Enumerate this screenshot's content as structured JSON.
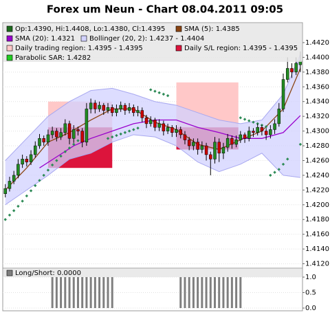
{
  "chart_data": [
    {
      "type": "candlestick",
      "title": "Forex um Neun - Chart 08.04.2011 09:05",
      "candle_label": "Op:1.4390, Hi:1.4408, Lo:1.4380, Cl:1.4395",
      "candle_color": "#1e6b1e",
      "up_color": "#228b22",
      "down_color": "#cc0000",
      "categories": [
        null,
        null,
        null,
        null,
        null,
        null,
        null,
        null,
        null,
        null,
        null,
        null,
        null,
        null,
        null,
        null,
        null,
        null,
        null,
        null,
        null,
        null,
        null,
        null,
        null,
        null,
        null,
        null,
        null,
        null,
        null,
        null,
        null,
        null,
        null,
        null,
        null,
        null,
        null,
        null,
        null,
        null,
        null,
        null,
        null,
        null,
        null,
        null,
        null,
        null,
        null,
        null,
        null,
        null,
        null,
        null,
        null,
        null,
        null,
        null,
        null,
        null,
        null,
        null,
        null,
        null,
        null,
        null,
        null,
        null
      ],
      "open": [
        1.4215,
        1.4222,
        1.4232,
        1.424,
        1.4255,
        1.4262,
        1.4258,
        1.4268,
        1.428,
        1.429,
        1.4285,
        1.4295,
        1.43,
        1.4292,
        1.4298,
        1.431,
        1.429,
        1.4302,
        1.43,
        1.4285,
        1.433,
        1.4338,
        1.433,
        1.4335,
        1.4328,
        1.4332,
        1.4325,
        1.433,
        1.4335,
        1.4328,
        1.4332,
        1.4325,
        1.4328,
        1.4318,
        1.431,
        1.4315,
        1.4305,
        1.431,
        1.43,
        1.4305,
        1.4298,
        1.4302,
        1.4295,
        1.4288,
        1.428,
        1.4285,
        1.4275,
        1.428,
        1.4268,
        1.4262,
        1.4285,
        1.427,
        1.4278,
        1.429,
        1.4282,
        1.4288,
        1.4295,
        1.429,
        1.43,
        1.4298,
        1.4305,
        1.43,
        1.4295,
        1.4302,
        1.431,
        1.433,
        1.437,
        1.4385,
        1.438,
        1.439
      ],
      "high": [
        1.4228,
        1.4238,
        1.4246,
        1.4262,
        1.4268,
        1.4266,
        1.4274,
        1.4286,
        1.4296,
        1.4294,
        1.4302,
        1.4306,
        1.4304,
        1.4304,
        1.4316,
        1.4314,
        1.4308,
        1.4306,
        1.4304,
        1.4338,
        1.4344,
        1.4342,
        1.434,
        1.4338,
        1.4338,
        1.4336,
        1.4336,
        1.434,
        1.4338,
        1.4338,
        1.4336,
        1.4334,
        1.4332,
        1.4322,
        1.432,
        1.4318,
        1.4316,
        1.4314,
        1.431,
        1.4308,
        1.4308,
        1.4306,
        1.43,
        1.4292,
        1.429,
        1.429,
        1.4286,
        1.4284,
        1.4272,
        1.4292,
        1.429,
        1.4284,
        1.4296,
        1.4294,
        1.4294,
        1.43,
        1.4298,
        1.4306,
        1.4304,
        1.431,
        1.4308,
        1.4304,
        1.4308,
        1.4316,
        1.4338,
        1.4378,
        1.44,
        1.4392,
        1.44,
        1.4408
      ],
      "low": [
        1.421,
        1.4218,
        1.4228,
        1.4236,
        1.425,
        1.4252,
        1.4254,
        1.4264,
        1.4276,
        1.428,
        1.428,
        1.429,
        1.4286,
        1.4288,
        1.4294,
        1.4282,
        1.4284,
        1.4294,
        1.4278,
        1.428,
        1.4324,
        1.4324,
        1.4326,
        1.4322,
        1.4324,
        1.432,
        1.432,
        1.4326,
        1.4322,
        1.4324,
        1.432,
        1.432,
        1.4312,
        1.4304,
        1.4306,
        1.43,
        1.43,
        1.4294,
        1.4296,
        1.4292,
        1.4292,
        1.429,
        1.4282,
        1.4274,
        1.4274,
        1.4268,
        1.427,
        1.426,
        1.424,
        1.4256,
        1.4258,
        1.4262,
        1.4272,
        1.4276,
        1.4278,
        1.4284,
        1.4284,
        1.4286,
        1.4292,
        1.4294,
        1.4294,
        1.4288,
        1.429,
        1.4296,
        1.4306,
        1.4326,
        1.4366,
        1.4372,
        1.4376,
        1.438
      ],
      "close": [
        1.4222,
        1.4232,
        1.424,
        1.4255,
        1.4262,
        1.4258,
        1.4268,
        1.428,
        1.429,
        1.4285,
        1.4295,
        1.43,
        1.4292,
        1.4298,
        1.431,
        1.429,
        1.4302,
        1.43,
        1.4285,
        1.433,
        1.4338,
        1.433,
        1.4335,
        1.4328,
        1.4332,
        1.4325,
        1.433,
        1.4335,
        1.4328,
        1.4332,
        1.4325,
        1.4328,
        1.4318,
        1.431,
        1.4315,
        1.4305,
        1.431,
        1.43,
        1.4305,
        1.4298,
        1.4302,
        1.4295,
        1.4288,
        1.428,
        1.4285,
        1.4275,
        1.428,
        1.4268,
        1.4262,
        1.4285,
        1.427,
        1.4278,
        1.429,
        1.4282,
        1.4288,
        1.4295,
        1.429,
        1.43,
        1.4298,
        1.4305,
        1.43,
        1.4295,
        1.4302,
        1.431,
        1.433,
        1.437,
        1.4385,
        1.438,
        1.4392,
        1.4395
      ],
      "series": [
        {
          "name": "SMA (5): 1.4385",
          "color": "#8b4513",
          "kind": "line",
          "x": [
            0,
            5,
            10,
            15,
            20,
            25,
            30,
            35,
            40,
            45,
            50,
            55,
            60,
            65,
            69
          ],
          "values": [
            1.422,
            1.425,
            1.4285,
            1.4298,
            1.4315,
            1.433,
            1.433,
            1.4312,
            1.4302,
            1.4282,
            1.4275,
            1.4288,
            1.43,
            1.433,
            1.4385
          ]
        },
        {
          "name": "SMA (20): 1.4321",
          "color": "#9900cc",
          "kind": "line",
          "x": [
            8,
            12,
            16,
            20,
            25,
            30,
            35,
            40,
            45,
            50,
            55,
            60,
            65,
            69
          ],
          "values": [
            1.425,
            1.4265,
            1.428,
            1.429,
            1.43,
            1.431,
            1.4315,
            1.4315,
            1.4305,
            1.4298,
            1.429,
            1.429,
            1.4298,
            1.4321
          ]
        },
        {
          "name": "Bollinger (20, 2): 1.4237 - 1.4404",
          "color": "#a8a8f0",
          "fill": "#d2d2ff",
          "kind": "band",
          "x": [
            0,
            5,
            10,
            15,
            20,
            25,
            30,
            35,
            40,
            45,
            50,
            55,
            60,
            65,
            69
          ],
          "upper": [
            1.426,
            1.429,
            1.432,
            1.434,
            1.4355,
            1.4358,
            1.435,
            1.434,
            1.4335,
            1.4325,
            1.4315,
            1.431,
            1.4315,
            1.435,
            1.4404
          ],
          "lower": [
            1.42,
            1.422,
            1.424,
            1.4262,
            1.427,
            1.4285,
            1.4295,
            1.4292,
            1.428,
            1.4258,
            1.4245,
            1.4255,
            1.427,
            1.424,
            1.4237
          ]
        },
        {
          "name": "Parabolic SAR: 1.4282",
          "color": "#2e8b57",
          "kind": "dots",
          "x": [
            0,
            1,
            2,
            3,
            4,
            5,
            6,
            7,
            8,
            9,
            10,
            11,
            12,
            13,
            14,
            15,
            16,
            17,
            24,
            25,
            26,
            27,
            28,
            29,
            30,
            31,
            34,
            35,
            36,
            37,
            38,
            55,
            56,
            57,
            58,
            59,
            60,
            61,
            62,
            63,
            64,
            65,
            66,
            69
          ],
          "values": [
            1.418,
            1.4186,
            1.4192,
            1.4198,
            1.4205,
            1.4212,
            1.4219,
            1.4226,
            1.4233,
            1.424,
            1.4247,
            1.4254,
            1.426,
            1.4266,
            1.4272,
            1.4277,
            1.4282,
            1.4287,
            1.429,
            1.4292,
            1.4294,
            1.4296,
            1.4298,
            1.43,
            1.4302,
            1.4304,
            1.4356,
            1.4354,
            1.4352,
            1.435,
            1.4348,
            1.4318,
            1.4316,
            1.4314,
            1.4312,
            1.431,
            1.4308,
            1.4306,
            1.424,
            1.4244,
            1.4248,
            1.4255,
            1.4262,
            1.4282
          ]
        }
      ],
      "region_legend": [
        {
          "name": "Daily trading region: 1.4395 - 1.4395",
          "color": "#ffc8c8"
        },
        {
          "name": "Daily S/L region: 1.4395 - 1.4395",
          "color": "#dc143c"
        }
      ],
      "regions": [
        {
          "x": [
            10,
            25
          ],
          "trading": [
            1.425,
            1.434
          ],
          "sl": [
            1.425,
            1.4305
          ]
        },
        {
          "x": [
            40,
            54.5
          ],
          "trading": [
            1.4275,
            1.4366
          ],
          "sl": [
            1.4275,
            1.4305
          ]
        }
      ],
      "xlim": [
        -0.6,
        69.5
      ],
      "ylim": [
        1.4114,
        1.4447
      ],
      "yticks": [
        {
          "value": 1.412,
          "label": "1.4120"
        },
        {
          "value": 1.414,
          "label": "1.4140"
        },
        {
          "value": 1.416,
          "label": "1.4160"
        },
        {
          "value": 1.418,
          "label": "1.4180"
        },
        {
          "value": 1.42,
          "label": "1.4200"
        },
        {
          "value": 1.422,
          "label": "1.4220"
        },
        {
          "value": 1.424,
          "label": "1.4240"
        },
        {
          "value": 1.426,
          "label": "1.4260"
        },
        {
          "value": 1.428,
          "label": "1.4280"
        },
        {
          "value": 1.43,
          "label": "1.4300"
        },
        {
          "value": 1.432,
          "label": "1.4320"
        },
        {
          "value": 1.434,
          "label": "1.4340"
        },
        {
          "value": 1.436,
          "label": "1.4360"
        },
        {
          "value": 1.438,
          "label": "1.4380"
        },
        {
          "value": 1.44,
          "label": "1.4400"
        },
        {
          "value": 1.442,
          "label": "1.4420"
        }
      ],
      "grid": true
    },
    {
      "type": "bar",
      "legend": "Long/Short: 0.0000",
      "color": "#7f7f7f",
      "values": [
        0,
        0,
        0,
        0,
        0,
        0,
        0,
        0,
        0,
        0,
        0,
        1,
        1,
        1,
        1,
        1,
        1,
        1,
        1,
        1,
        1,
        1,
        1,
        1,
        1,
        1,
        0,
        0,
        0,
        0,
        0,
        0,
        0,
        0,
        0,
        0,
        0,
        0,
        0,
        0,
        0,
        1,
        1,
        1,
        1,
        1,
        1,
        1,
        1,
        1,
        1,
        1,
        1,
        1,
        1,
        1,
        0,
        0,
        0,
        0,
        0,
        0,
        0,
        0,
        0,
        0,
        0,
        0,
        0,
        0
      ],
      "ylim": [
        -0.089,
        1.289
      ],
      "yticks": [
        {
          "value": 0,
          "label": "0.0"
        },
        {
          "value": 0.5,
          "label": "0.5"
        },
        {
          "value": 1,
          "label": "1.0"
        }
      ],
      "grid": true
    }
  ]
}
